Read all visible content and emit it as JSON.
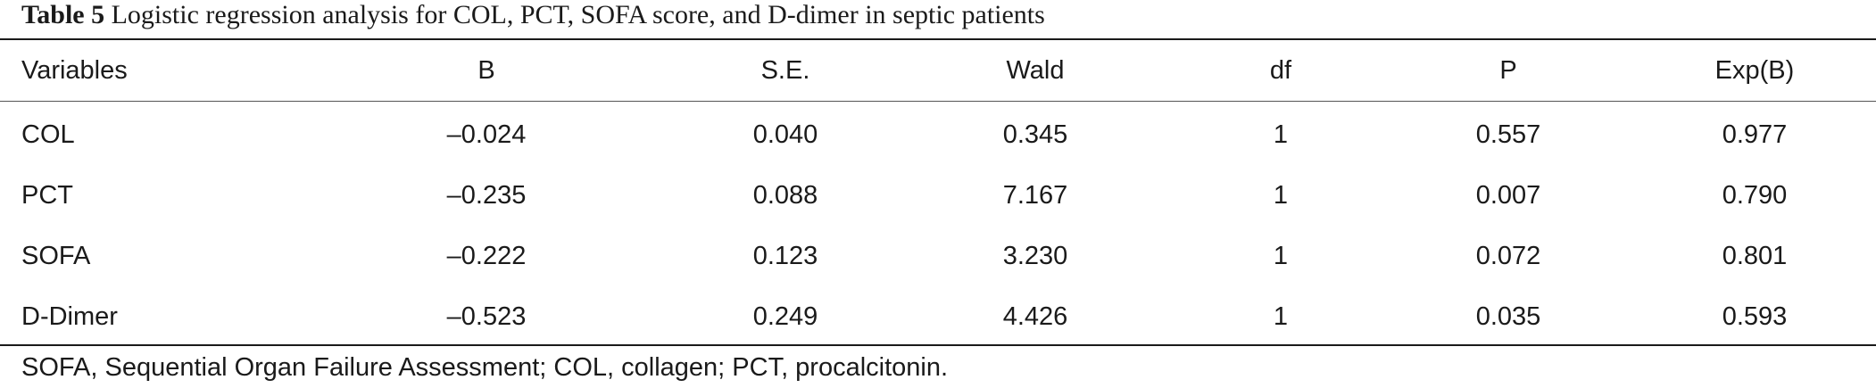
{
  "caption": {
    "label": "Table 5",
    "text": "Logistic regression analysis for COL, PCT, SOFA score, and D-dimer in septic patients"
  },
  "table": {
    "headers": [
      "Variables",
      "B",
      "S.E.",
      "Wald",
      "df",
      "P",
      "Exp(B)"
    ],
    "rows": [
      [
        "COL",
        "–0.024",
        "0.040",
        "0.345",
        "1",
        "0.557",
        "0.977"
      ],
      [
        "PCT",
        "–0.235",
        "0.088",
        "7.167",
        "1",
        "0.007",
        "0.790"
      ],
      [
        "SOFA",
        "–0.222",
        "0.123",
        "3.230",
        "1",
        "0.072",
        "0.801"
      ],
      [
        "D-Dimer",
        "–0.523",
        "0.249",
        "4.426",
        "1",
        "0.035",
        "0.593"
      ]
    ]
  },
  "footnote": "SOFA, Sequential Organ Failure Assessment; COL, collagen; PCT, procalcitonin."
}
